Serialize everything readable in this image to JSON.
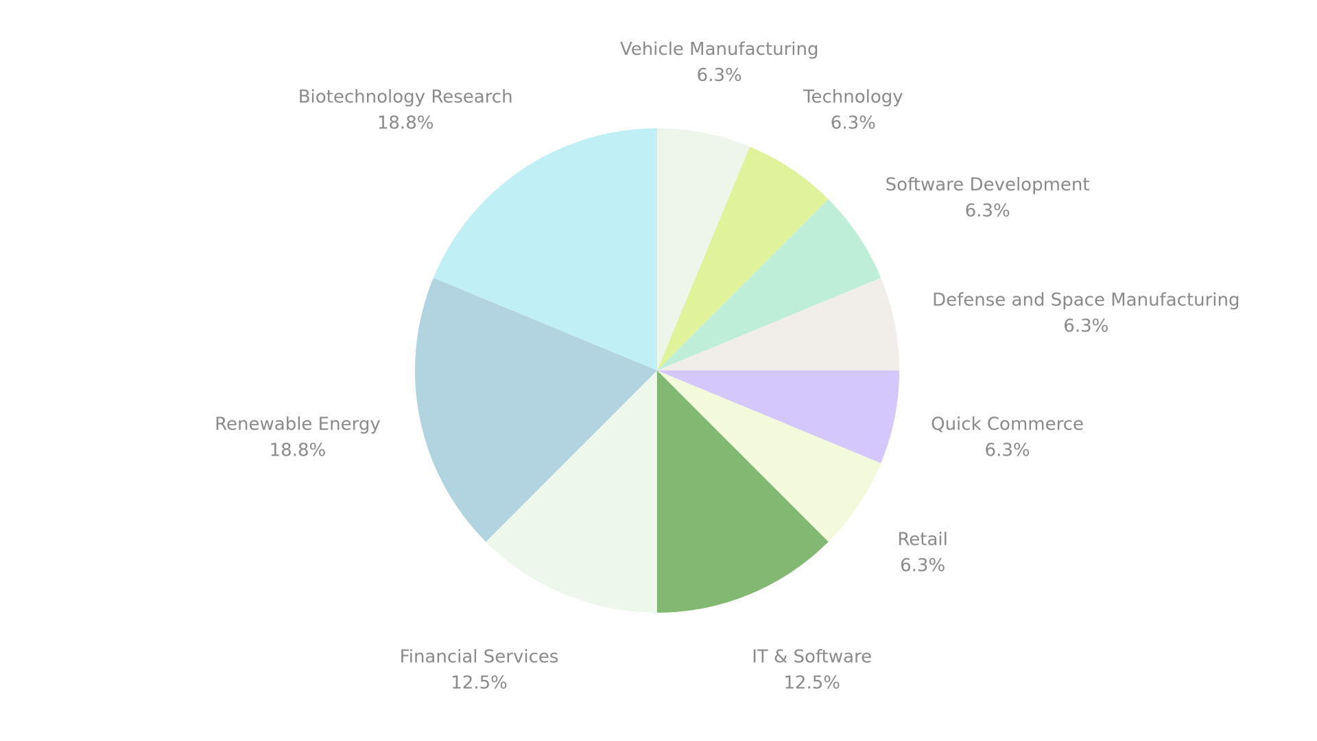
{
  "chart_data": {
    "type": "pie",
    "title": "",
    "start_angle": "top",
    "direction": "clockwise",
    "slices": [
      {
        "label": "Vehicle Manufacturing",
        "value": 6.25,
        "display": "6.3%",
        "color": "#eef6ec"
      },
      {
        "label": "Technology",
        "value": 6.25,
        "display": "6.3%",
        "color": "#e0f29a"
      },
      {
        "label": "Software Development",
        "value": 6.25,
        "display": "6.3%",
        "color": "#beedd8"
      },
      {
        "label": "Defense and Space Manufacturing",
        "value": 6.25,
        "display": "6.3%",
        "color": "#f1eeea"
      },
      {
        "label": "Quick Commerce",
        "value": 6.25,
        "display": "6.3%",
        "color": "#d3c7fc"
      },
      {
        "label": "Retail",
        "value": 6.25,
        "display": "6.3%",
        "color": "#f3f9db"
      },
      {
        "label": "IT & Software",
        "value": 12.5,
        "display": "12.5%",
        "color": "#82b871"
      },
      {
        "label": "Financial Services",
        "value": 12.5,
        "display": "12.5%",
        "color": "#eef7ec"
      },
      {
        "label": "Renewable Energy",
        "value": 18.75,
        "display": "18.8%",
        "color": "#b2d4e0"
      },
      {
        "label": "Biotechnology Research",
        "value": 18.75,
        "display": "18.8%",
        "color": "#c0eff6"
      }
    ]
  }
}
